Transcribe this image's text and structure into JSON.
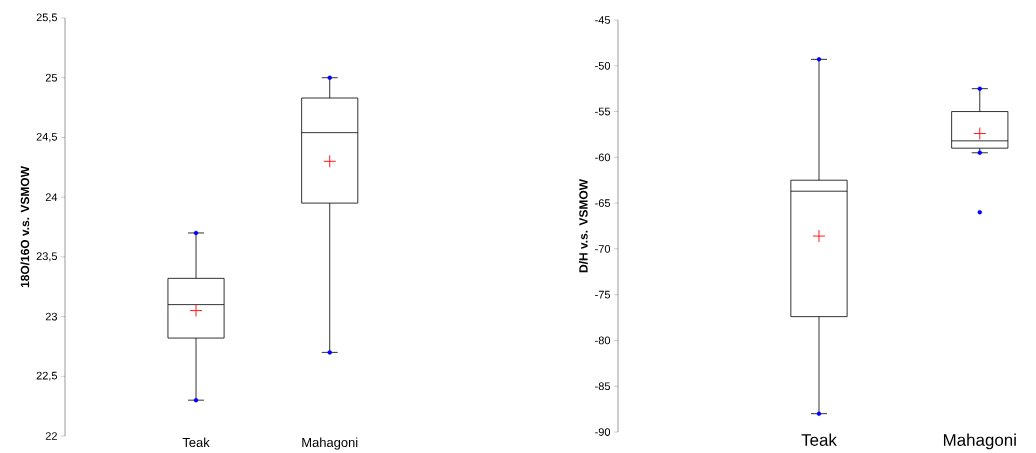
{
  "chart_data": [
    {
      "type": "box",
      "ylabel": "18O/16O v.s. VSMOW",
      "categories": [
        "Teak",
        "Mahagoni"
      ],
      "boxes": [
        {
          "low": 22.3,
          "q1": 22.82,
          "median": 23.1,
          "q3": 23.32,
          "high": 23.7,
          "mean": 23.05
        },
        {
          "low": 22.7,
          "q1": 23.95,
          "median": 24.54,
          "q3": 24.83,
          "high": 25.0,
          "mean": 24.3
        }
      ],
      "series": [
        {
          "type": "scatter",
          "color": "#0000ff",
          "x": [
            "Teak",
            "Teak",
            "Mahagoni",
            "Mahagoni"
          ],
          "values": [
            22.3,
            23.7,
            22.7,
            25.0
          ]
        }
      ],
      "ylim": [
        22,
        25.5
      ],
      "yticks": [
        22,
        {
          "value": 22.5,
          "label": "22,5"
        },
        23,
        {
          "value": 23.5,
          "label": "23,5"
        },
        24,
        {
          "value": 24.5,
          "label": "24,5"
        },
        25,
        {
          "value": 25.5,
          "label": "25,5"
        }
      ]
    },
    {
      "type": "box",
      "ylabel": "D/H v.s. VSMOW",
      "categories": [
        "Teak",
        "Mahagoni"
      ],
      "boxes": [
        {
          "low": -88,
          "q1": -77.4,
          "median": -63.7,
          "q3": -62.5,
          "high": -49.3,
          "mean": -68.6
        },
        {
          "low": -59.5,
          "q1": -59,
          "median": -58.2,
          "q3": -55,
          "high": -52.5,
          "mean": -57.4,
          "outliers": [
            -66
          ]
        }
      ],
      "series": [
        {
          "type": "scatter",
          "color": "#0000ff",
          "x": [
            "Teak",
            "Teak",
            "Mahagoni",
            "Mahagoni"
          ],
          "values": [
            -88,
            -49.3,
            -59.5,
            -52.5
          ]
        }
      ],
      "ylim": [
        -90,
        -45
      ],
      "yticks": [
        -90,
        -85,
        -80,
        -75,
        -70,
        -65,
        -60,
        -55,
        -50,
        -45
      ]
    }
  ]
}
